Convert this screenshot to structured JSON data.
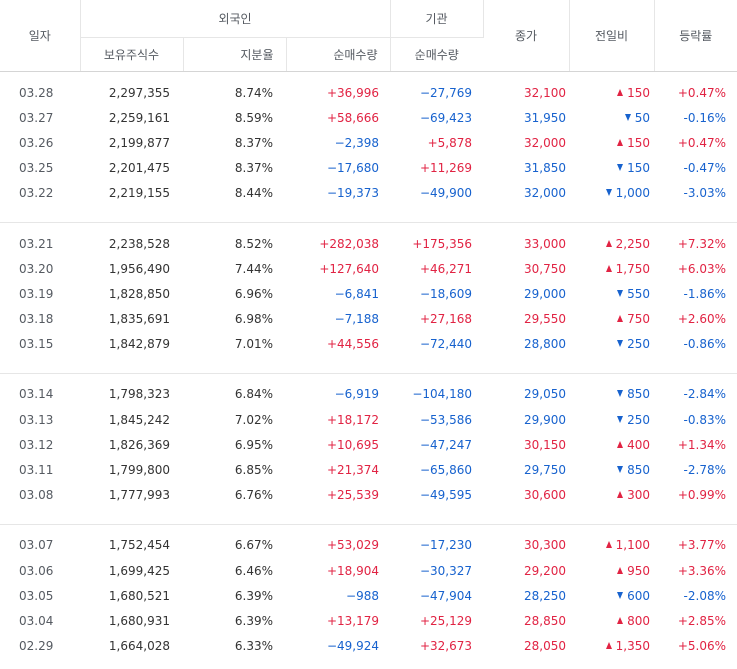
{
  "colors": {
    "up": "#e12343",
    "down": "#1762ce",
    "text": "#333333",
    "header_text": "#555a61",
    "border": "#e6e6e6"
  },
  "header": {
    "date": "일자",
    "foreign": "외국인",
    "institution": "기관",
    "close": "종가",
    "change": "전일비",
    "rate": "등락률",
    "foreign_holdings": "보유주식수",
    "foreign_ratio": "지분율",
    "foreign_net": "순매수량",
    "institution_net": "순매수량"
  },
  "groups": [
    {
      "rows": [
        {
          "date": "03.28",
          "holdings": "2,297,355",
          "ratio": "8.74%",
          "foreign_net": "+36,996",
          "foreign_dir": "up",
          "inst_net": "−27,769",
          "inst_dir": "down",
          "close": "32,100",
          "close_dir": "up",
          "change": "150",
          "change_dir": "up",
          "change_icon": "triangle-up-icon",
          "rate": "+0.47%",
          "rate_dir": "up"
        },
        {
          "date": "03.27",
          "holdings": "2,259,161",
          "ratio": "8.59%",
          "foreign_net": "+58,666",
          "foreign_dir": "up",
          "inst_net": "−69,423",
          "inst_dir": "down",
          "close": "31,950",
          "close_dir": "down",
          "change": "50",
          "change_dir": "down",
          "change_icon": "triangle-down-icon",
          "rate": "-0.16%",
          "rate_dir": "down"
        },
        {
          "date": "03.26",
          "holdings": "2,199,877",
          "ratio": "8.37%",
          "foreign_net": "−2,398",
          "foreign_dir": "down",
          "inst_net": "+5,878",
          "inst_dir": "up",
          "close": "32,000",
          "close_dir": "up",
          "change": "150",
          "change_dir": "up",
          "change_icon": "triangle-up-icon",
          "rate": "+0.47%",
          "rate_dir": "up"
        },
        {
          "date": "03.25",
          "holdings": "2,201,475",
          "ratio": "8.37%",
          "foreign_net": "−17,680",
          "foreign_dir": "down",
          "inst_net": "+11,269",
          "inst_dir": "up",
          "close": "31,850",
          "close_dir": "down",
          "change": "150",
          "change_dir": "down",
          "change_icon": "triangle-down-icon",
          "rate": "-0.47%",
          "rate_dir": "down"
        },
        {
          "date": "03.22",
          "holdings": "2,219,155",
          "ratio": "8.44%",
          "foreign_net": "−19,373",
          "foreign_dir": "down",
          "inst_net": "−49,900",
          "inst_dir": "down",
          "close": "32,000",
          "close_dir": "down",
          "change": "1,000",
          "change_dir": "down",
          "change_icon": "triangle-down-icon",
          "rate": "-3.03%",
          "rate_dir": "down"
        }
      ]
    },
    {
      "rows": [
        {
          "date": "03.21",
          "holdings": "2,238,528",
          "ratio": "8.52%",
          "foreign_net": "+282,038",
          "foreign_dir": "up",
          "inst_net": "+175,356",
          "inst_dir": "up",
          "close": "33,000",
          "close_dir": "up",
          "change": "2,250",
          "change_dir": "up",
          "change_icon": "triangle-up-icon",
          "rate": "+7.32%",
          "rate_dir": "up"
        },
        {
          "date": "03.20",
          "holdings": "1,956,490",
          "ratio": "7.44%",
          "foreign_net": "+127,640",
          "foreign_dir": "up",
          "inst_net": "+46,271",
          "inst_dir": "up",
          "close": "30,750",
          "close_dir": "up",
          "change": "1,750",
          "change_dir": "up",
          "change_icon": "triangle-up-icon",
          "rate": "+6.03%",
          "rate_dir": "up"
        },
        {
          "date": "03.19",
          "holdings": "1,828,850",
          "ratio": "6.96%",
          "foreign_net": "−6,841",
          "foreign_dir": "down",
          "inst_net": "−18,609",
          "inst_dir": "down",
          "close": "29,000",
          "close_dir": "down",
          "change": "550",
          "change_dir": "down",
          "change_icon": "triangle-down-icon",
          "rate": "-1.86%",
          "rate_dir": "down"
        },
        {
          "date": "03.18",
          "holdings": "1,835,691",
          "ratio": "6.98%",
          "foreign_net": "−7,188",
          "foreign_dir": "down",
          "inst_net": "+27,168",
          "inst_dir": "up",
          "close": "29,550",
          "close_dir": "up",
          "change": "750",
          "change_dir": "up",
          "change_icon": "triangle-up-icon",
          "rate": "+2.60%",
          "rate_dir": "up"
        },
        {
          "date": "03.15",
          "holdings": "1,842,879",
          "ratio": "7.01%",
          "foreign_net": "+44,556",
          "foreign_dir": "up",
          "inst_net": "−72,440",
          "inst_dir": "down",
          "close": "28,800",
          "close_dir": "down",
          "change": "250",
          "change_dir": "down",
          "change_icon": "triangle-down-icon",
          "rate": "-0.86%",
          "rate_dir": "down"
        }
      ]
    },
    {
      "rows": [
        {
          "date": "03.14",
          "holdings": "1,798,323",
          "ratio": "6.84%",
          "foreign_net": "−6,919",
          "foreign_dir": "down",
          "inst_net": "−104,180",
          "inst_dir": "down",
          "close": "29,050",
          "close_dir": "down",
          "change": "850",
          "change_dir": "down",
          "change_icon": "triangle-down-icon",
          "rate": "-2.84%",
          "rate_dir": "down"
        },
        {
          "date": "03.13",
          "holdings": "1,845,242",
          "ratio": "7.02%",
          "foreign_net": "+18,172",
          "foreign_dir": "up",
          "inst_net": "−53,586",
          "inst_dir": "down",
          "close": "29,900",
          "close_dir": "down",
          "change": "250",
          "change_dir": "down",
          "change_icon": "triangle-down-icon",
          "rate": "-0.83%",
          "rate_dir": "down"
        },
        {
          "date": "03.12",
          "holdings": "1,826,369",
          "ratio": "6.95%",
          "foreign_net": "+10,695",
          "foreign_dir": "up",
          "inst_net": "−47,247",
          "inst_dir": "down",
          "close": "30,150",
          "close_dir": "up",
          "change": "400",
          "change_dir": "up",
          "change_icon": "triangle-up-icon",
          "rate": "+1.34%",
          "rate_dir": "up"
        },
        {
          "date": "03.11",
          "holdings": "1,799,800",
          "ratio": "6.85%",
          "foreign_net": "+21,374",
          "foreign_dir": "up",
          "inst_net": "−65,860",
          "inst_dir": "down",
          "close": "29,750",
          "close_dir": "down",
          "change": "850",
          "change_dir": "down",
          "change_icon": "triangle-down-icon",
          "rate": "-2.78%",
          "rate_dir": "down"
        },
        {
          "date": "03.08",
          "holdings": "1,777,993",
          "ratio": "6.76%",
          "foreign_net": "+25,539",
          "foreign_dir": "up",
          "inst_net": "−49,595",
          "inst_dir": "down",
          "close": "30,600",
          "close_dir": "up",
          "change": "300",
          "change_dir": "up",
          "change_icon": "triangle-up-icon",
          "rate": "+0.99%",
          "rate_dir": "up"
        }
      ]
    },
    {
      "rows": [
        {
          "date": "03.07",
          "holdings": "1,752,454",
          "ratio": "6.67%",
          "foreign_net": "+53,029",
          "foreign_dir": "up",
          "inst_net": "−17,230",
          "inst_dir": "down",
          "close": "30,300",
          "close_dir": "up",
          "change": "1,100",
          "change_dir": "up",
          "change_icon": "triangle-up-icon",
          "rate": "+3.77%",
          "rate_dir": "up"
        },
        {
          "date": "03.06",
          "holdings": "1,699,425",
          "ratio": "6.46%",
          "foreign_net": "+18,904",
          "foreign_dir": "up",
          "inst_net": "−30,327",
          "inst_dir": "down",
          "close": "29,200",
          "close_dir": "up",
          "change": "950",
          "change_dir": "up",
          "change_icon": "triangle-up-icon",
          "rate": "+3.36%",
          "rate_dir": "up"
        },
        {
          "date": "03.05",
          "holdings": "1,680,521",
          "ratio": "6.39%",
          "foreign_net": "−988",
          "foreign_dir": "down",
          "inst_net": "−47,904",
          "inst_dir": "down",
          "close": "28,250",
          "close_dir": "down",
          "change": "600",
          "change_dir": "down",
          "change_icon": "triangle-down-icon",
          "rate": "-2.08%",
          "rate_dir": "down"
        },
        {
          "date": "03.04",
          "holdings": "1,680,931",
          "ratio": "6.39%",
          "foreign_net": "+13,179",
          "foreign_dir": "up",
          "inst_net": "+25,129",
          "inst_dir": "up",
          "close": "28,850",
          "close_dir": "up",
          "change": "800",
          "change_dir": "up",
          "change_icon": "triangle-up-icon",
          "rate": "+2.85%",
          "rate_dir": "up"
        },
        {
          "date": "02.29",
          "holdings": "1,664,028",
          "ratio": "6.33%",
          "foreign_net": "−49,924",
          "foreign_dir": "down",
          "inst_net": "+32,673",
          "inst_dir": "up",
          "close": "28,050",
          "close_dir": "up",
          "change": "1,350",
          "change_dir": "up",
          "change_icon": "triangle-up-icon",
          "rate": "+5.06%",
          "rate_dir": "up"
        }
      ]
    }
  ]
}
